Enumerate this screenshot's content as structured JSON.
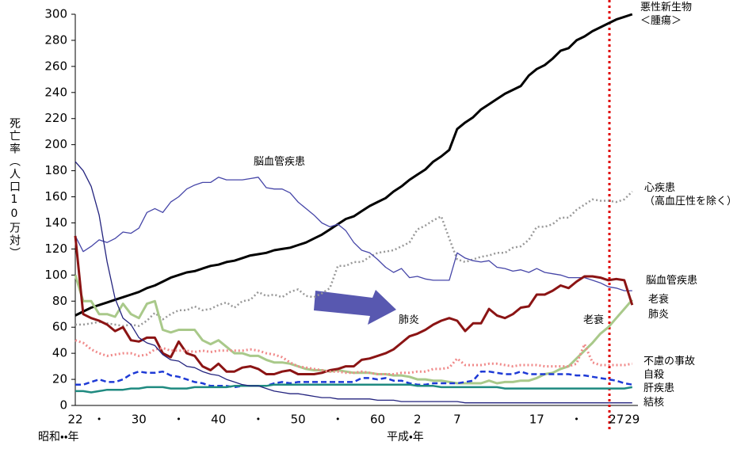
{
  "chart_data": {
    "type": "line",
    "ylabel": "死亡率（人口10万対）",
    "era_labels": [
      "昭和・・年",
      "平成・年"
    ],
    "annotations": [
      "脳血管疾患",
      "肺炎",
      "老衰"
    ],
    "categories": [
      "22",
      null,
      null,
      "・",
      null,
      null,
      null,
      null,
      "30",
      null,
      null,
      null,
      null,
      "・",
      null,
      null,
      null,
      null,
      "40",
      null,
      null,
      null,
      null,
      "・",
      null,
      null,
      null,
      null,
      "50",
      null,
      null,
      null,
      null,
      "・",
      null,
      null,
      null,
      null,
      "60",
      null,
      null,
      null,
      null,
      "2",
      null,
      null,
      null,
      null,
      "7",
      null,
      null,
      null,
      null,
      null,
      null,
      null,
      null,
      null,
      "17",
      null,
      null,
      null,
      null,
      "・",
      null,
      null,
      null,
      null,
      "27",
      null,
      "29"
    ],
    "ylim": [
      0,
      300
    ],
    "yticks": [
      0,
      20,
      40,
      60,
      80,
      100,
      120,
      140,
      160,
      180,
      200,
      220,
      240,
      260,
      280,
      300
    ],
    "grid": false,
    "series": [
      {
        "name": "悪性新生物\n＜腫瘍＞",
        "color": "#000000",
        "style": "solid",
        "width": 3,
        "values": [
          69,
          72,
          75,
          77,
          79,
          81,
          83,
          85,
          87,
          90,
          92,
          95,
          98,
          100,
          102,
          103,
          105,
          107,
          108,
          110,
          111,
          113,
          115,
          116,
          117,
          119,
          120,
          121,
          123,
          125,
          128,
          131,
          135,
          139,
          143,
          145,
          149,
          153,
          156,
          159,
          164,
          168,
          173,
          177,
          181,
          187,
          191,
          196,
          212,
          217,
          221,
          227,
          231,
          235,
          239,
          242,
          245,
          253,
          258,
          261,
          266,
          272,
          274,
          280,
          283,
          287,
          290,
          293,
          296,
          298,
          300
        ]
      },
      {
        "name": "心疾患\n（高血圧性を除く）",
        "color": "#999999",
        "style": "dotted",
        "width": 2.5,
        "values": [
          62,
          62,
          63,
          64,
          63,
          62,
          61,
          62,
          61,
          65,
          71,
          66,
          70,
          73,
          73,
          76,
          73,
          74,
          77,
          79,
          75,
          80,
          81,
          87,
          84,
          85,
          83,
          87,
          89,
          84,
          83,
          86,
          90,
          107,
          107,
          110,
          110,
          114,
          117,
          118,
          119,
          122,
          125,
          135,
          138,
          142,
          145,
          128,
          112,
          110,
          112,
          114,
          115,
          117,
          117,
          121,
          122,
          127,
          137,
          137,
          139,
          144,
          144,
          150,
          154,
          158,
          157,
          157,
          156,
          158,
          164
        ]
      },
      {
        "name": "脳血管疾患",
        "color": "#4646a8",
        "style": "solid",
        "width": 1.3,
        "values": [
          130,
          118,
          122,
          127,
          125,
          128,
          133,
          132,
          136,
          148,
          151,
          148,
          156,
          160,
          166,
          169,
          171,
          171,
          175,
          173,
          173,
          173,
          174,
          175,
          167,
          166,
          166,
          163,
          156,
          151,
          146,
          140,
          137,
          139,
          134,
          125,
          119,
          117,
          112,
          106,
          102,
          105,
          98,
          99,
          97,
          96,
          96,
          96,
          117,
          113,
          111,
          110,
          111,
          106,
          105,
          103,
          104,
          102,
          105,
          102,
          101,
          100,
          98,
          98,
          98,
          96,
          94,
          91,
          90,
          88,
          88
        ]
      },
      {
        "name": "老衰",
        "color": "#a9c98a",
        "style": "solid",
        "width": 3,
        "values": [
          100,
          80,
          80,
          70,
          70,
          68,
          78,
          70,
          67,
          78,
          80,
          58,
          56,
          58,
          58,
          58,
          50,
          47,
          50,
          45,
          40,
          40,
          38,
          38,
          35,
          33,
          33,
          32,
          30,
          28,
          27,
          27,
          26,
          27,
          26,
          25,
          25,
          25,
          24,
          24,
          23,
          23,
          22,
          20,
          20,
          19,
          19,
          18,
          17,
          17,
          17,
          17,
          19,
          17,
          18,
          18,
          19,
          19,
          21,
          24,
          25,
          28,
          30,
          36,
          42,
          48,
          55,
          60,
          67,
          74,
          81
        ]
      },
      {
        "name": "肺炎",
        "color": "#8b1414",
        "style": "solid",
        "width": 3,
        "values": [
          130,
          70,
          67,
          65,
          62,
          57,
          60,
          50,
          49,
          52,
          52,
          40,
          37,
          49,
          40,
          38,
          30,
          27,
          32,
          26,
          26,
          29,
          30,
          28,
          24,
          24,
          26,
          27,
          24,
          24,
          24,
          25,
          27,
          28,
          30,
          30,
          35,
          36,
          38,
          40,
          43,
          48,
          53,
          55,
          58,
          62,
          65,
          67,
          65,
          57,
          63,
          63,
          74,
          69,
          67,
          70,
          75,
          76,
          85,
          85,
          88,
          92,
          90,
          95,
          99,
          99,
          98,
          96,
          97,
          96,
          77
        ]
      },
      {
        "name": "不慮の事故",
        "color": "#f08a8a",
        "style": "dotted",
        "width": 3,
        "values": [
          50,
          48,
          43,
          40,
          38,
          39,
          40,
          40,
          38,
          39,
          43,
          44,
          42,
          42,
          42,
          41,
          42,
          41,
          42,
          42,
          42,
          42,
          43,
          42,
          40,
          39,
          37,
          33,
          30,
          29,
          28,
          27,
          26,
          26,
          25,
          25,
          26,
          25,
          24,
          24,
          24,
          25,
          25,
          26,
          26,
          28,
          28,
          29,
          36,
          31,
          31,
          31,
          32,
          32,
          31,
          30,
          31,
          31,
          31,
          30,
          30,
          30,
          30,
          32,
          47,
          33,
          31,
          31,
          31,
          31,
          32
        ]
      },
      {
        "name": "自殺",
        "color": "#1e3ad6",
        "style": "dashed",
        "width": 2.5,
        "values": [
          16,
          16,
          18,
          20,
          18,
          18,
          20,
          24,
          26,
          25,
          25,
          26,
          23,
          22,
          20,
          18,
          17,
          15,
          15,
          15,
          14,
          15,
          15,
          15,
          15,
          17,
          18,
          17,
          18,
          18,
          18,
          18,
          18,
          18,
          18,
          18,
          21,
          21,
          20,
          21,
          19,
          19,
          17,
          16,
          16,
          17,
          17,
          17,
          17,
          18,
          19,
          26,
          26,
          25,
          24,
          24,
          26,
          24,
          24,
          24,
          24,
          24,
          24,
          23,
          23,
          22,
          21,
          20,
          19,
          17,
          16
        ]
      },
      {
        "name": "肝疾患",
        "color": "#1f8a80",
        "style": "solid",
        "width": 2.5,
        "values": [
          11,
          11,
          10,
          11,
          12,
          12,
          12,
          13,
          13,
          14,
          14,
          14,
          13,
          13,
          13,
          14,
          14,
          14,
          14,
          14,
          15,
          15,
          15,
          15,
          15,
          16,
          16,
          16,
          16,
          16,
          16,
          16,
          16,
          16,
          16,
          16,
          16,
          16,
          16,
          16,
          16,
          16,
          16,
          15,
          15,
          15,
          14,
          14,
          14,
          14,
          14,
          14,
          14,
          14,
          13,
          13,
          13,
          13,
          13,
          13,
          13,
          13,
          13,
          13,
          13,
          13,
          13,
          13,
          13,
          13,
          14
        ]
      },
      {
        "name": "結核",
        "color": "#23237e",
        "style": "solid",
        "width": 1.3,
        "values": [
          187,
          180,
          168,
          146,
          110,
          82,
          67,
          62,
          52,
          48,
          46,
          39,
          35,
          34,
          30,
          29,
          26,
          24,
          23,
          20,
          18,
          16,
          15,
          15,
          13,
          11,
          10,
          9,
          9,
          8,
          7,
          6,
          6,
          5,
          5,
          5,
          5,
          5,
          4,
          4,
          4,
          3,
          3,
          3,
          3,
          3,
          3,
          3,
          3,
          2,
          2,
          2,
          2,
          2,
          2,
          2,
          2,
          2,
          2,
          2,
          2,
          2,
          2,
          2,
          2,
          2,
          2,
          2,
          2,
          2,
          2
        ]
      }
    ]
  }
}
